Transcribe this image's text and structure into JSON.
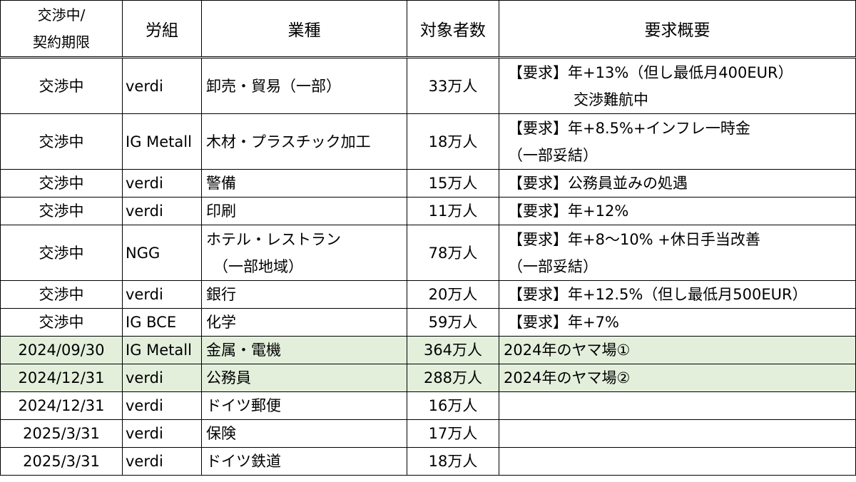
{
  "headers": {
    "status_line1": "交渉中/",
    "status_line2": "契約期限",
    "union": "労組",
    "industry": "業種",
    "workers": "対象者数",
    "summary": "要求概要"
  },
  "rows": [
    {
      "status": "交渉中",
      "union": "verdi",
      "industry": [
        "卸売・貿易（一部）"
      ],
      "workers": "33万人",
      "summary": [
        "【要求】年+13%（但し最低月400EUR）",
        "交渉難航中"
      ],
      "highlight": false
    },
    {
      "status": "交渉中",
      "union": "IG Metall",
      "industry": [
        "木材・プラスチック加工"
      ],
      "workers": "18万人",
      "summary": [
        "【要求】年+8.5%+インフレ一時金",
        "（一部妥結）"
      ],
      "highlight": false
    },
    {
      "status": "交渉中",
      "union": "verdi",
      "industry": [
        "警備"
      ],
      "workers": "15万人",
      "summary": [
        "【要求】公務員並みの処遇"
      ],
      "highlight": false
    },
    {
      "status": "交渉中",
      "union": "verdi",
      "industry": [
        "印刷"
      ],
      "workers": "11万人",
      "summary": [
        "【要求】年+12%"
      ],
      "highlight": false
    },
    {
      "status": "交渉中",
      "union": "NGG",
      "industry": [
        "ホテル・レストラン",
        "（一部地域）"
      ],
      "workers": "78万人",
      "summary": [
        "【要求】年+8～10% +休日手当改善",
        "（一部妥結）"
      ],
      "highlight": false
    },
    {
      "status": "交渉中",
      "union": "verdi",
      "industry": [
        "銀行"
      ],
      "workers": "20万人",
      "summary": [
        "【要求】年+12.5%（但し最低月500EUR）"
      ],
      "highlight": false
    },
    {
      "status": "交渉中",
      "union": "IG BCE",
      "industry": [
        "化学"
      ],
      "workers": "59万人",
      "summary": [
        "【要求】年+7%"
      ],
      "highlight": false
    },
    {
      "status": "2024/09/30",
      "union": "IG Metall",
      "industry": [
        "金属・電機"
      ],
      "workers": "364万人",
      "summary": [
        "2024年のヤマ場①"
      ],
      "highlight": true
    },
    {
      "status": "2024/12/31",
      "union": "verdi",
      "industry": [
        "公務員"
      ],
      "workers": "288万人",
      "summary": [
        "2024年のヤマ場②"
      ],
      "highlight": true
    },
    {
      "status": "2024/12/31",
      "union": "verdi",
      "industry": [
        "ドイツ郵便"
      ],
      "workers": "16万人",
      "summary": [],
      "highlight": false
    },
    {
      "status": "2025/3/31",
      "union": "verdi",
      "industry": [
        "保険"
      ],
      "workers": "17万人",
      "summary": [],
      "highlight": false
    },
    {
      "status": "2025/3/31",
      "union": "verdi",
      "industry": [
        "ドイツ鉄道"
      ],
      "workers": "18万人",
      "summary": [],
      "highlight": false
    }
  ],
  "colors": {
    "highlight_bg": "#e3efdb",
    "border": "#000000"
  }
}
